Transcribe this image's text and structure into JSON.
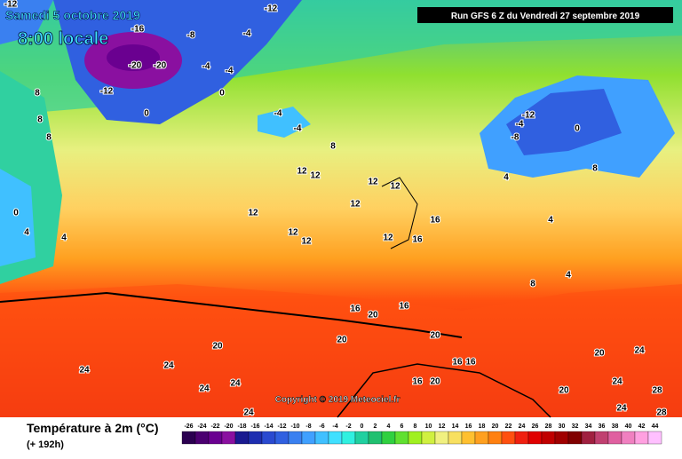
{
  "header": {
    "date": "Samedi 5 octobre 2019",
    "time": "8:00 locale",
    "run": "Run GFS 6 Z du Vendredi 27 septembre 2019"
  },
  "map": {
    "copyright": "Copyright © 2019 Meteociel.fr",
    "contour_labels": [
      -12,
      -12,
      -16,
      -20,
      -20,
      -12,
      -8,
      -4,
      -4,
      -4,
      0,
      0,
      -4,
      -4,
      8,
      8,
      0,
      4,
      4,
      8,
      12,
      12,
      12,
      12,
      12,
      16,
      16,
      12,
      12,
      8,
      -12,
      -8,
      -4,
      0,
      4,
      8,
      4,
      4,
      8,
      12,
      12,
      16,
      20,
      20,
      16,
      16,
      20,
      24,
      24,
      24,
      24,
      20,
      20,
      24,
      24,
      24,
      28,
      20,
      16,
      16,
      20,
      24,
      28
    ]
  },
  "legend": {
    "title": "Température à 2m (°C)",
    "subtitle": "(+ 192h)",
    "ticks": [
      -26,
      -24,
      -22,
      -20,
      -18,
      -16,
      -14,
      -12,
      -10,
      -8,
      -6,
      -4,
      -2,
      0,
      2,
      4,
      6,
      8,
      10,
      12,
      14,
      16,
      18,
      20,
      22,
      24,
      26,
      28,
      30,
      32,
      34,
      36,
      38,
      40,
      42,
      44
    ],
    "colors": [
      "#2b0050",
      "#4b0070",
      "#6a0090",
      "#8a10a0",
      "#1a1a90",
      "#1e2eb0",
      "#2a4ad0",
      "#3060e0",
      "#3a80f0",
      "#40a0ff",
      "#40c0ff",
      "#40e0ff",
      "#30f0e0",
      "#20d0a0",
      "#20c070",
      "#30d040",
      "#60e030",
      "#a0f020",
      "#d0f040",
      "#f0f080",
      "#f8e060",
      "#ffc030",
      "#ffa020",
      "#ff8010",
      "#ff5010",
      "#f02010",
      "#e00000",
      "#c00000",
      "#a00000",
      "#800000",
      "#a02040",
      "#c04070",
      "#e060a0",
      "#f080c0",
      "#ffa0e0",
      "#ffc0ff"
    ]
  }
}
